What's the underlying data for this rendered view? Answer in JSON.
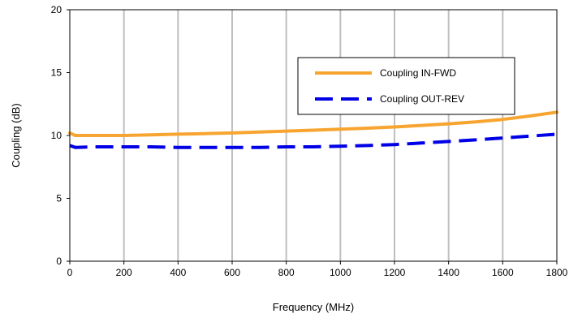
{
  "chart_data": {
    "type": "line",
    "title": "",
    "xlabel": "Frequency (MHz)",
    "ylabel": "Coupling (dB)",
    "xlim": [
      0,
      1800
    ],
    "ylim": [
      0,
      20
    ],
    "x_ticks": [
      0,
      200,
      400,
      600,
      800,
      1000,
      1200,
      1400,
      1600,
      1800
    ],
    "y_ticks": [
      0,
      5,
      10,
      15,
      20
    ],
    "grid": "vertical",
    "legend_position": "upper-right",
    "series": [
      {
        "name": "Coupling IN-FWD",
        "color": "#F7A530",
        "style": "solid",
        "x": [
          0,
          20,
          100,
          200,
          300,
          400,
          500,
          600,
          700,
          800,
          900,
          1000,
          1100,
          1200,
          1300,
          1400,
          1500,
          1600,
          1700,
          1800
        ],
        "y": [
          10.2,
          10.0,
          10.0,
          10.0,
          10.05,
          10.1,
          10.15,
          10.2,
          10.28,
          10.35,
          10.42,
          10.5,
          10.58,
          10.68,
          10.8,
          10.93,
          11.08,
          11.28,
          11.55,
          11.85
        ]
      },
      {
        "name": "Coupling OUT-REV",
        "color": "#0000E6",
        "style": "dashed",
        "x": [
          0,
          20,
          100,
          200,
          300,
          400,
          500,
          600,
          700,
          800,
          900,
          1000,
          1100,
          1200,
          1300,
          1400,
          1500,
          1600,
          1700,
          1800
        ],
        "y": [
          9.2,
          9.05,
          9.1,
          9.1,
          9.1,
          9.05,
          9.05,
          9.05,
          9.05,
          9.1,
          9.1,
          9.15,
          9.2,
          9.28,
          9.4,
          9.52,
          9.65,
          9.8,
          9.95,
          10.1
        ]
      }
    ]
  }
}
